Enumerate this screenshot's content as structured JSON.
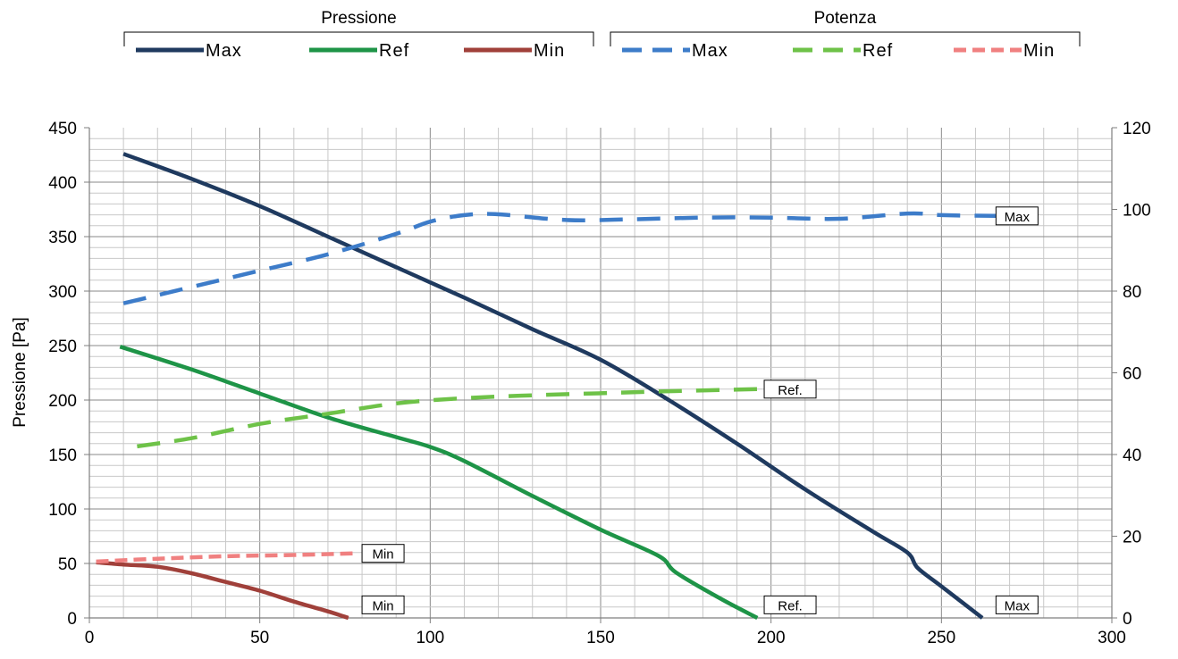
{
  "chart_data": {
    "type": "line",
    "ylabel": "Pressione [Pa]",
    "xlim": [
      0,
      300
    ],
    "ylim": [
      0,
      450
    ],
    "y2lim": [
      0,
      120
    ],
    "xticks": [
      "0",
      "50",
      "100",
      "150",
      "200",
      "250",
      "300"
    ],
    "yticks": [
      "0",
      "50",
      "100",
      "150",
      "200",
      "250",
      "300",
      "350",
      "400",
      "450"
    ],
    "y2ticks": [
      "0",
      "20",
      "40",
      "60",
      "80",
      "100",
      "120"
    ],
    "grid": true,
    "legend": {
      "placement": "top",
      "groups": [
        {
          "title": "Pressione",
          "entries": [
            {
              "label": "Max",
              "color": "#1f3a5f",
              "dash": "solid"
            },
            {
              "label": "Ref",
              "color": "#1e9447",
              "dash": "solid"
            },
            {
              "label": "Min",
              "color": "#a0403a",
              "dash": "solid"
            }
          ]
        },
        {
          "title": "Potenza",
          "entries": [
            {
              "label": "Max",
              "color": "#3d7cc9",
              "dash": "dashed"
            },
            {
              "label": "Ref",
              "color": "#6ec248",
              "dash": "dashed"
            },
            {
              "label": "Min",
              "color": "#f08080",
              "dash": "dotted"
            }
          ]
        }
      ]
    },
    "series": [
      {
        "group": "Pressione",
        "name": "Max",
        "axis": "left",
        "color": "#1f3a5f",
        "dash": "solid",
        "x": [
          10,
          30,
          50,
          70,
          90,
          110,
          130,
          150,
          170,
          190,
          210,
          230,
          240,
          243,
          250,
          262
        ],
        "y": [
          426,
          403,
          378,
          350,
          322,
          294,
          265,
          237,
          200,
          160,
          118,
          79,
          60,
          46,
          29,
          0
        ]
      },
      {
        "group": "Pressione",
        "name": "Ref",
        "axis": "left",
        "color": "#1e9447",
        "dash": "solid",
        "x": [
          9,
          30,
          50,
          70,
          90,
          100,
          110,
          130,
          150,
          167,
          172,
          185,
          196
        ],
        "y": [
          249,
          228,
          206,
          184,
          166,
          157,
          144,
          112,
          81,
          57,
          42,
          18,
          0
        ]
      },
      {
        "group": "Pressione",
        "name": "Min",
        "axis": "left",
        "color": "#a0403a",
        "dash": "solid",
        "x": [
          2,
          10,
          20,
          30,
          40,
          50,
          60,
          70,
          76
        ],
        "y": [
          51,
          49,
          47,
          41,
          33,
          25,
          15,
          6,
          0
        ]
      },
      {
        "group": "Potenza",
        "name": "Max",
        "axis": "right",
        "color": "#3d7cc9",
        "dash": "dashed",
        "x": [
          10,
          30,
          50,
          70,
          90,
          100,
          110,
          120,
          140,
          160,
          180,
          200,
          220,
          240,
          250,
          266
        ],
        "y": [
          77,
          81,
          85,
          89,
          94,
          97,
          98.6,
          98.8,
          97.4,
          97.6,
          98,
          98,
          97.7,
          99,
          98.6,
          98.4
        ]
      },
      {
        "group": "Potenza",
        "name": "Ref",
        "axis": "right",
        "color": "#6ec248",
        "dash": "dashed",
        "x": [
          14,
          30,
          50,
          70,
          90,
          110,
          130,
          150,
          170,
          196
        ],
        "y": [
          42,
          44,
          47.5,
          50,
          52.5,
          53.8,
          54.5,
          55,
          55.5,
          56
        ]
      },
      {
        "group": "Potenza",
        "name": "Min",
        "axis": "right",
        "color": "#f08080",
        "dash": "dotted",
        "x": [
          2,
          20,
          40,
          60,
          78
        ],
        "y": [
          13.8,
          14.5,
          15.1,
          15.4,
          15.8
        ]
      }
    ],
    "annotations": [
      {
        "text": "Max",
        "x": 266,
        "y": 98.4,
        "axis": "right"
      },
      {
        "text": "Ref.",
        "x": 198,
        "y": 56,
        "axis": "right"
      },
      {
        "text": "Min",
        "x": 80,
        "y": 15.8,
        "axis": "right"
      },
      {
        "text": "Max",
        "x": 266,
        "y": 12,
        "axis": "left"
      },
      {
        "text": "Ref.",
        "x": 198,
        "y": 12,
        "axis": "left"
      },
      {
        "text": "Min",
        "x": 80,
        "y": 12,
        "axis": "left"
      }
    ]
  }
}
